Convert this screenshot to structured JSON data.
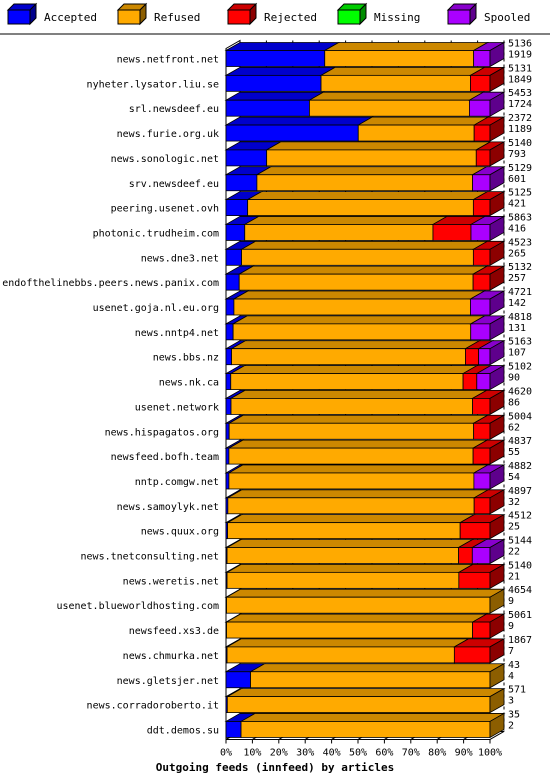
{
  "chart_data": {
    "type": "bar",
    "orientation": "horizontal",
    "stacked": true,
    "percent_scale": true,
    "title": "Outgoing feeds (innfeed) by articles",
    "legend_position": "top",
    "x_ticks": [
      "0%",
      "10%",
      "20%",
      "30%",
      "40%",
      "50%",
      "60%",
      "70%",
      "80%",
      "90%",
      "100%"
    ],
    "grid": true,
    "series": [
      {
        "name": "Accepted",
        "color": "#0000ff"
      },
      {
        "name": "Refused",
        "color": "#ffaa00"
      },
      {
        "name": "Rejected",
        "color": "#ff0000"
      },
      {
        "name": "Missing",
        "color": "#00ff00"
      },
      {
        "name": "Spooled",
        "color": "#aa00ff"
      }
    ],
    "rows": [
      {
        "host": "news.netfront.net",
        "total": "5136",
        "accepted": "1919",
        "seg": [
          0.374,
          0.564,
          0.0,
          0.0,
          0.062
        ]
      },
      {
        "host": "nyheter.lysator.liu.se",
        "total": "5131",
        "accepted": "1849",
        "seg": [
          0.36,
          0.566,
          0.074,
          0.0,
          0.0
        ]
      },
      {
        "host": "srl.newsdeef.eu",
        "total": "5453",
        "accepted": "1724",
        "seg": [
          0.316,
          0.606,
          0.0,
          0.0,
          0.078
        ]
      },
      {
        "host": "news.furie.org.uk",
        "total": "2372",
        "accepted": "1189",
        "seg": [
          0.501,
          0.439,
          0.06,
          0.0,
          0.0
        ]
      },
      {
        "host": "news.sonologic.net",
        "total": "5140",
        "accepted": "793",
        "seg": [
          0.154,
          0.794,
          0.052,
          0.0,
          0.0
        ]
      },
      {
        "host": "srv.newsdeef.eu",
        "total": "5129",
        "accepted": "601",
        "seg": [
          0.117,
          0.817,
          0.0,
          0.0,
          0.066
        ]
      },
      {
        "host": "peering.usenet.ovh",
        "total": "5125",
        "accepted": "421",
        "seg": [
          0.082,
          0.855,
          0.063,
          0.0,
          0.0
        ]
      },
      {
        "host": "photonic.trudheim.com",
        "total": "5863",
        "accepted": "416",
        "seg": [
          0.071,
          0.713,
          0.144,
          0.0,
          0.072
        ]
      },
      {
        "host": "news.dne3.net",
        "total": "4523",
        "accepted": "265",
        "seg": [
          0.059,
          0.878,
          0.063,
          0.0,
          0.0
        ]
      },
      {
        "host": "endofthelinebbs.peers.news.panix.com",
        "total": "5132",
        "accepted": "257",
        "seg": [
          0.05,
          0.886,
          0.064,
          0.0,
          0.0
        ]
      },
      {
        "host": "usenet.goja.nl.eu.org",
        "total": "4721",
        "accepted": "142",
        "seg": [
          0.03,
          0.896,
          0.0,
          0.0,
          0.074
        ]
      },
      {
        "host": "news.nntp4.net",
        "total": "4818",
        "accepted": "131",
        "seg": [
          0.027,
          0.9,
          0.0,
          0.0,
          0.073
        ]
      },
      {
        "host": "news.bbs.nz",
        "total": "5163",
        "accepted": "107",
        "seg": [
          0.021,
          0.886,
          0.05,
          0.0,
          0.043
        ]
      },
      {
        "host": "news.nk.ca",
        "total": "5102",
        "accepted": "90",
        "seg": [
          0.018,
          0.88,
          0.052,
          0.0,
          0.05
        ]
      },
      {
        "host": "usenet.network",
        "total": "4620",
        "accepted": "86",
        "seg": [
          0.019,
          0.915,
          0.066,
          0.0,
          0.0
        ]
      },
      {
        "host": "news.hispagatos.org",
        "total": "5004",
        "accepted": "62",
        "seg": [
          0.012,
          0.926,
          0.062,
          0.0,
          0.0
        ]
      },
      {
        "host": "newsfeed.bofh.team",
        "total": "4837",
        "accepted": "55",
        "seg": [
          0.011,
          0.925,
          0.064,
          0.0,
          0.0
        ]
      },
      {
        "host": "nntp.comgw.net",
        "total": "4882",
        "accepted": "54",
        "seg": [
          0.011,
          0.928,
          0.0,
          0.0,
          0.061
        ]
      },
      {
        "host": "news.samoylyk.net",
        "total": "4897",
        "accepted": "32",
        "seg": [
          0.007,
          0.933,
          0.06,
          0.0,
          0.0
        ]
      },
      {
        "host": "news.quux.org",
        "total": "4512",
        "accepted": "25",
        "seg": [
          0.006,
          0.881,
          0.113,
          0.0,
          0.0
        ]
      },
      {
        "host": "news.tnetconsulting.net",
        "total": "5144",
        "accepted": "22",
        "seg": [
          0.004,
          0.877,
          0.052,
          0.0,
          0.067
        ]
      },
      {
        "host": "news.weretis.net",
        "total": "5140",
        "accepted": "21",
        "seg": [
          0.004,
          0.878,
          0.118,
          0.0,
          0.0
        ]
      },
      {
        "host": "usenet.blueworldhosting.com",
        "total": "4654",
        "accepted": "9",
        "seg": [
          0.002,
          0.998,
          0.0,
          0.0,
          0.0
        ]
      },
      {
        "host": "newsfeed.xs3.de",
        "total": "5061",
        "accepted": "9",
        "seg": [
          0.002,
          0.932,
          0.066,
          0.0,
          0.0
        ]
      },
      {
        "host": "news.chmurka.net",
        "total": "1867",
        "accepted": "7",
        "seg": [
          0.004,
          0.861,
          0.135,
          0.0,
          0.0
        ]
      },
      {
        "host": "news.gletsjer.net",
        "total": "43",
        "accepted": "4",
        "seg": [
          0.093,
          0.907,
          0.0,
          0.0,
          0.0
        ]
      },
      {
        "host": "news.corradoroberto.it",
        "total": "571",
        "accepted": "3",
        "seg": [
          0.005,
          0.995,
          0.0,
          0.0,
          0.0
        ]
      },
      {
        "host": "ddt.demos.su",
        "total": "35",
        "accepted": "2",
        "seg": [
          0.057,
          0.943,
          0.0,
          0.0,
          0.0
        ]
      }
    ]
  }
}
